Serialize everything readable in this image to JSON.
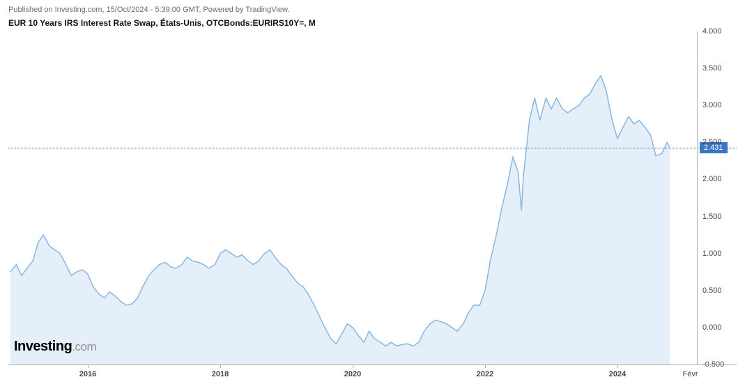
{
  "header": {
    "published_line": "Published on Investing.com, 15/Oct/2024 - 5:39:00 GMT, Powered by TradingView.",
    "title": "EUR 10 Years IRS Interest Rate Swap, États-Unis, OTCBonds:EURIRS10Y=, M"
  },
  "watermark": {
    "brand": "Investing",
    "suffix": ".com"
  },
  "chart": {
    "type": "area",
    "ylim": [
      -0.5,
      4.0
    ],
    "ytick_step": 0.5,
    "yticks": [
      "4.000",
      "3.500",
      "3.000",
      "2.500",
      "2.000",
      "1.500",
      "1.000",
      "0.500",
      "0.000",
      "-0.500"
    ],
    "xlim": [
      2014.8,
      2025.2
    ],
    "xticks": [
      2016,
      2018,
      2020,
      2022,
      2024
    ],
    "xtick_extra_label": "Févr",
    "last_value": 2.431,
    "last_value_label": "2.431",
    "colors": {
      "line": "#8ab6e0",
      "fill": "#e4eff9",
      "background": "#ffffff",
      "grid": "#b0b0b0",
      "dotted_line": "#3a75c4",
      "tag_bg": "#3a75c4",
      "tag_text": "#ffffff",
      "axis_text": "#444444",
      "header_text": "#6a6a6a",
      "title_text": "#111111"
    },
    "line_width": 1.5,
    "series": [
      [
        2014.83,
        0.75
      ],
      [
        2014.92,
        0.85
      ],
      [
        2015.0,
        0.7
      ],
      [
        2015.08,
        0.8
      ],
      [
        2015.17,
        0.9
      ],
      [
        2015.25,
        1.15
      ],
      [
        2015.33,
        1.25
      ],
      [
        2015.42,
        1.1
      ],
      [
        2015.5,
        1.05
      ],
      [
        2015.58,
        1.0
      ],
      [
        2015.67,
        0.85
      ],
      [
        2015.75,
        0.7
      ],
      [
        2015.83,
        0.75
      ],
      [
        2015.92,
        0.78
      ],
      [
        2016.0,
        0.72
      ],
      [
        2016.08,
        0.55
      ],
      [
        2016.17,
        0.45
      ],
      [
        2016.25,
        0.4
      ],
      [
        2016.33,
        0.48
      ],
      [
        2016.42,
        0.42
      ],
      [
        2016.5,
        0.35
      ],
      [
        2016.58,
        0.3
      ],
      [
        2016.67,
        0.32
      ],
      [
        2016.75,
        0.4
      ],
      [
        2016.83,
        0.55
      ],
      [
        2016.92,
        0.7
      ],
      [
        2017.0,
        0.78
      ],
      [
        2017.08,
        0.85
      ],
      [
        2017.17,
        0.88
      ],
      [
        2017.25,
        0.82
      ],
      [
        2017.33,
        0.8
      ],
      [
        2017.42,
        0.85
      ],
      [
        2017.5,
        0.95
      ],
      [
        2017.58,
        0.9
      ],
      [
        2017.67,
        0.88
      ],
      [
        2017.75,
        0.85
      ],
      [
        2017.83,
        0.8
      ],
      [
        2017.92,
        0.85
      ],
      [
        2018.0,
        1.0
      ],
      [
        2018.08,
        1.05
      ],
      [
        2018.17,
        1.0
      ],
      [
        2018.25,
        0.95
      ],
      [
        2018.33,
        0.98
      ],
      [
        2018.42,
        0.9
      ],
      [
        2018.5,
        0.85
      ],
      [
        2018.58,
        0.9
      ],
      [
        2018.67,
        1.0
      ],
      [
        2018.75,
        1.05
      ],
      [
        2018.83,
        0.95
      ],
      [
        2018.92,
        0.85
      ],
      [
        2019.0,
        0.8
      ],
      [
        2019.08,
        0.7
      ],
      [
        2019.17,
        0.6
      ],
      [
        2019.25,
        0.55
      ],
      [
        2019.33,
        0.45
      ],
      [
        2019.42,
        0.3
      ],
      [
        2019.5,
        0.15
      ],
      [
        2019.58,
        0.0
      ],
      [
        2019.67,
        -0.15
      ],
      [
        2019.75,
        -0.22
      ],
      [
        2019.83,
        -0.1
      ],
      [
        2019.92,
        0.05
      ],
      [
        2020.0,
        0.0
      ],
      [
        2020.08,
        -0.1
      ],
      [
        2020.17,
        -0.2
      ],
      [
        2020.25,
        -0.05
      ],
      [
        2020.33,
        -0.15
      ],
      [
        2020.42,
        -0.2
      ],
      [
        2020.5,
        -0.25
      ],
      [
        2020.58,
        -0.2
      ],
      [
        2020.67,
        -0.25
      ],
      [
        2020.75,
        -0.23
      ],
      [
        2020.83,
        -0.22
      ],
      [
        2020.92,
        -0.25
      ],
      [
        2021.0,
        -0.2
      ],
      [
        2021.08,
        -0.05
      ],
      [
        2021.17,
        0.05
      ],
      [
        2021.25,
        0.1
      ],
      [
        2021.33,
        0.08
      ],
      [
        2021.42,
        0.05
      ],
      [
        2021.5,
        0.0
      ],
      [
        2021.58,
        -0.05
      ],
      [
        2021.67,
        0.05
      ],
      [
        2021.75,
        0.2
      ],
      [
        2021.83,
        0.3
      ],
      [
        2021.92,
        0.3
      ],
      [
        2022.0,
        0.5
      ],
      [
        2022.08,
        0.9
      ],
      [
        2022.17,
        1.25
      ],
      [
        2022.25,
        1.6
      ],
      [
        2022.33,
        1.9
      ],
      [
        2022.42,
        2.3
      ],
      [
        2022.5,
        2.1
      ],
      [
        2022.55,
        1.58
      ],
      [
        2022.58,
        2.05
      ],
      [
        2022.67,
        2.8
      ],
      [
        2022.75,
        3.1
      ],
      [
        2022.83,
        2.8
      ],
      [
        2022.92,
        3.1
      ],
      [
        2023.0,
        2.95
      ],
      [
        2023.08,
        3.1
      ],
      [
        2023.17,
        2.95
      ],
      [
        2023.25,
        2.9
      ],
      [
        2023.33,
        2.95
      ],
      [
        2023.42,
        3.0
      ],
      [
        2023.5,
        3.1
      ],
      [
        2023.58,
        3.15
      ],
      [
        2023.67,
        3.3
      ],
      [
        2023.75,
        3.4
      ],
      [
        2023.83,
        3.2
      ],
      [
        2023.92,
        2.8
      ],
      [
        2024.0,
        2.55
      ],
      [
        2024.08,
        2.7
      ],
      [
        2024.17,
        2.85
      ],
      [
        2024.25,
        2.75
      ],
      [
        2024.33,
        2.8
      ],
      [
        2024.42,
        2.7
      ],
      [
        2024.5,
        2.6
      ],
      [
        2024.58,
        2.32
      ],
      [
        2024.67,
        2.35
      ],
      [
        2024.75,
        2.5
      ],
      [
        2024.79,
        2.431
      ]
    ]
  }
}
